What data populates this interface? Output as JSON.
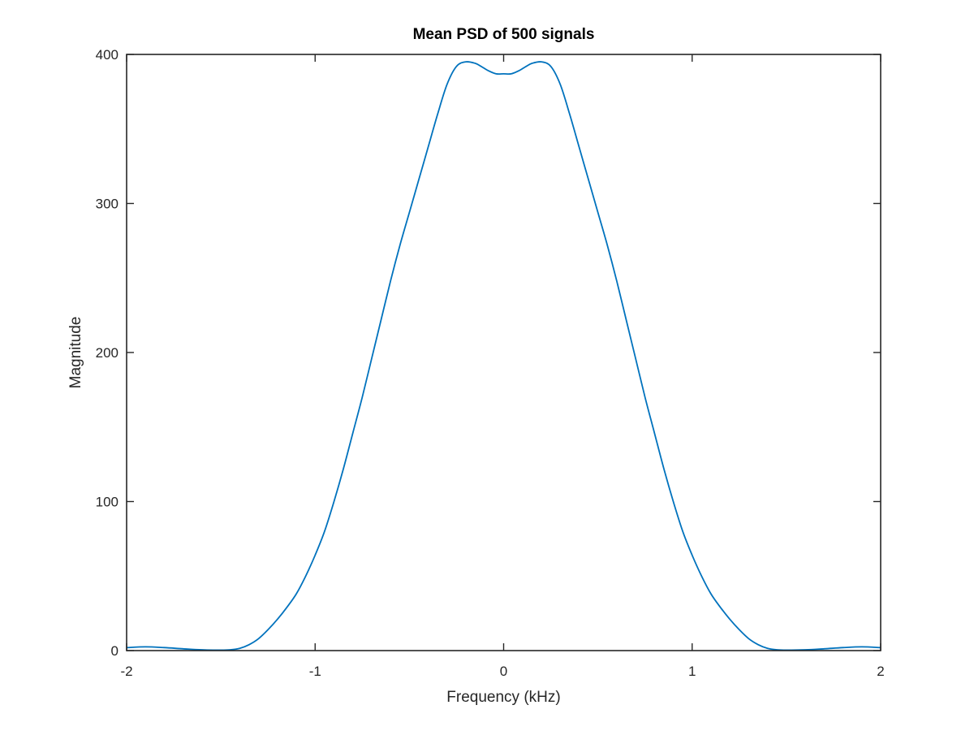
{
  "chart_data": {
    "type": "line",
    "title": "Mean PSD of 500 signals",
    "xlabel": "Frequency (kHz)",
    "ylabel": "Magnitude",
    "xlim": [
      -2,
      2
    ],
    "ylim": [
      0,
      400
    ],
    "xticks": [
      -2,
      -1,
      0,
      1,
      2
    ],
    "xtick_labels": [
      "-2",
      "-1",
      "0",
      "1",
      "2"
    ],
    "yticks": [
      0,
      100,
      200,
      300,
      400
    ],
    "ytick_labels": [
      "0",
      "100",
      "200",
      "300",
      "400"
    ],
    "grid": false,
    "box": true,
    "series": [
      {
        "color": "#0072bd",
        "x": [
          -2.0,
          -1.9,
          -1.8,
          -1.7,
          -1.6,
          -1.5,
          -1.45,
          -1.4,
          -1.35,
          -1.3,
          -1.25,
          -1.2,
          -1.15,
          -1.1,
          -1.05,
          -1.0,
          -0.95,
          -0.9,
          -0.85,
          -0.8,
          -0.75,
          -0.7,
          -0.65,
          -0.6,
          -0.55,
          -0.5,
          -0.45,
          -0.4,
          -0.35,
          -0.3,
          -0.25,
          -0.2,
          -0.15,
          -0.12,
          -0.08,
          -0.04,
          0.0,
          0.04,
          0.08,
          0.12,
          0.15,
          0.2,
          0.25,
          0.3,
          0.35,
          0.4,
          0.45,
          0.5,
          0.55,
          0.6,
          0.65,
          0.7,
          0.75,
          0.8,
          0.85,
          0.9,
          0.95,
          1.0,
          1.05,
          1.1,
          1.15,
          1.2,
          1.25,
          1.3,
          1.35,
          1.4,
          1.45,
          1.5,
          1.6,
          1.7,
          1.8,
          1.9,
          2.0
        ],
        "y": [
          2,
          2.5,
          2,
          1.2,
          0.5,
          0.3,
          0.5,
          1.5,
          4,
          8,
          14,
          21,
          29,
          38,
          50,
          64,
          80,
          100,
          122,
          146,
          170,
          196,
          222,
          248,
          272,
          294,
          316,
          338,
          360,
          380,
          392,
          395,
          394,
          392,
          389,
          387,
          387,
          387,
          389,
          392,
          394,
          395,
          392,
          380,
          360,
          338,
          316,
          294,
          272,
          248,
          222,
          196,
          170,
          146,
          122,
          100,
          80,
          64,
          50,
          38,
          29,
          21,
          14,
          8,
          4,
          1.5,
          0.5,
          0.3,
          0.5,
          1.2,
          2,
          2.5,
          2
        ]
      }
    ]
  }
}
